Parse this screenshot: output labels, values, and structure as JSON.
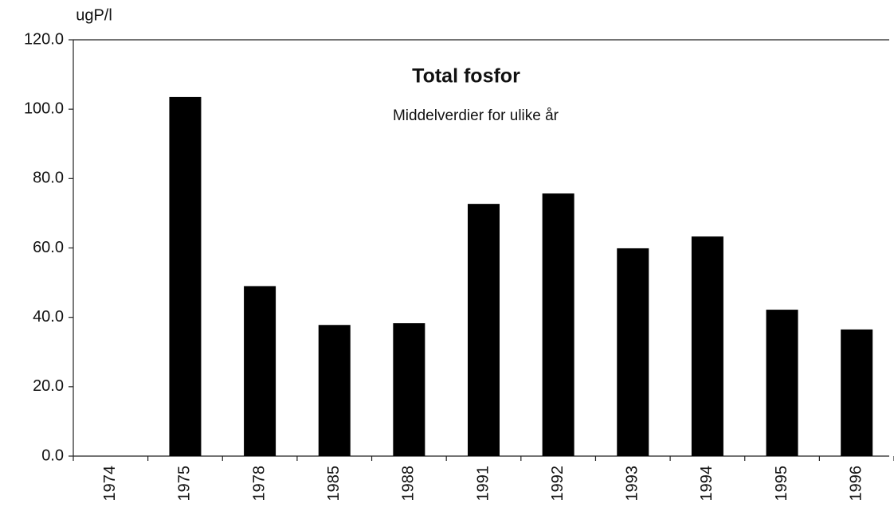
{
  "chart_data": {
    "type": "bar",
    "title": "Total fosfor",
    "subtitle": "Middelverdier for ulike år",
    "y_label": "ugP/l",
    "categories": [
      "1974",
      "1975",
      "1978",
      "1985",
      "1988",
      "1991",
      "1992",
      "1993",
      "1994",
      "1995",
      "1996"
    ],
    "values": [
      null,
      103.5,
      49,
      37.8,
      38.3,
      72.7,
      75.7,
      59.9,
      63.3,
      42.2,
      36.5
    ],
    "color": "#000000",
    "ylim": [
      0,
      120
    ],
    "yticks": [
      {
        "value": 0,
        "label": "0.0"
      },
      {
        "value": 20,
        "label": "20.0"
      },
      {
        "value": 40,
        "label": "40.0"
      },
      {
        "value": 60,
        "label": "60.0"
      },
      {
        "value": 80,
        "label": "80.0"
      },
      {
        "value": 100,
        "label": "100.0"
      },
      {
        "value": 120,
        "label": "120.0"
      }
    ],
    "grid": false
  }
}
